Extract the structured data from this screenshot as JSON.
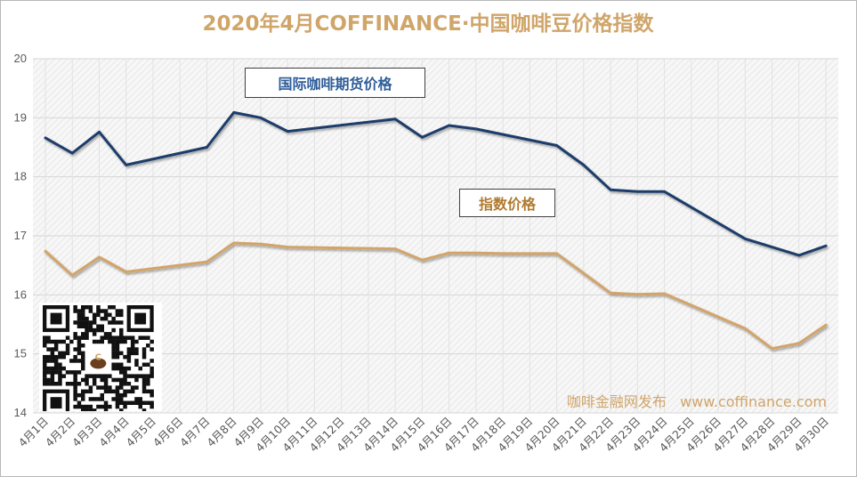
{
  "chart_data": {
    "type": "line",
    "title": "2020年4月COFFINANCE·中国咖啡豆价格指数",
    "categories": [
      "4月1日",
      "4月2日",
      "4月3日",
      "4月4日",
      "4月5日",
      "4月6日",
      "4月7日",
      "4月8日",
      "4月9日",
      "4月10日",
      "4月11日",
      "4月12日",
      "4月13日",
      "4月14日",
      "4月15日",
      "4月16日",
      "4月17日",
      "4月18日",
      "4月19日",
      "4月20日",
      "4月21日",
      "4月22日",
      "4月23日",
      "4月24日",
      "4月25日",
      "4月26日",
      "4月27日",
      "4月28日",
      "4月29日",
      "4月30日"
    ],
    "ylim": [
      14,
      20
    ],
    "yticks": [
      14,
      15,
      16,
      17,
      18,
      19,
      20
    ],
    "grid": true,
    "series": [
      {
        "name": "国际咖啡期货价格",
        "color": "#1f3d6b",
        "values": [
          18.66,
          18.4,
          18.76,
          18.2,
          null,
          null,
          18.5,
          19.09,
          19.0,
          18.77,
          null,
          null,
          null,
          18.98,
          18.67,
          18.87,
          18.81,
          null,
          null,
          18.53,
          18.2,
          17.78,
          17.75,
          17.75,
          null,
          null,
          16.95,
          null,
          16.67,
          16.83
        ],
        "connect_gaps": true
      },
      {
        "name": "指数价格",
        "color": "#d2a46a",
        "values": [
          16.74,
          16.33,
          16.64,
          16.39,
          null,
          null,
          16.56,
          16.88,
          16.86,
          16.81,
          null,
          null,
          null,
          16.78,
          16.59,
          16.71,
          16.71,
          16.7,
          16.7,
          16.7,
          null,
          16.03,
          16.01,
          16.02,
          null,
          null,
          15.43,
          15.09,
          15.18,
          15.49
        ],
        "connect_gaps": true
      }
    ]
  },
  "legend": {
    "futures_label": "国际咖啡期货价格",
    "index_label": "指数价格"
  },
  "watermark": "咖啡金融网发布   www.coffinance.com",
  "qr_label": "C"
}
